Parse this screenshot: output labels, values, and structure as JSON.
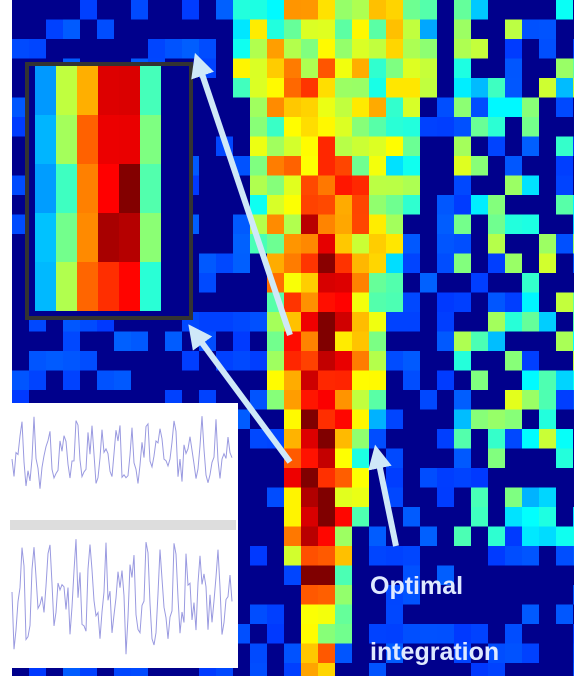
{
  "annotation": {
    "line1": "Optimal",
    "line2": "integration"
  }
}
